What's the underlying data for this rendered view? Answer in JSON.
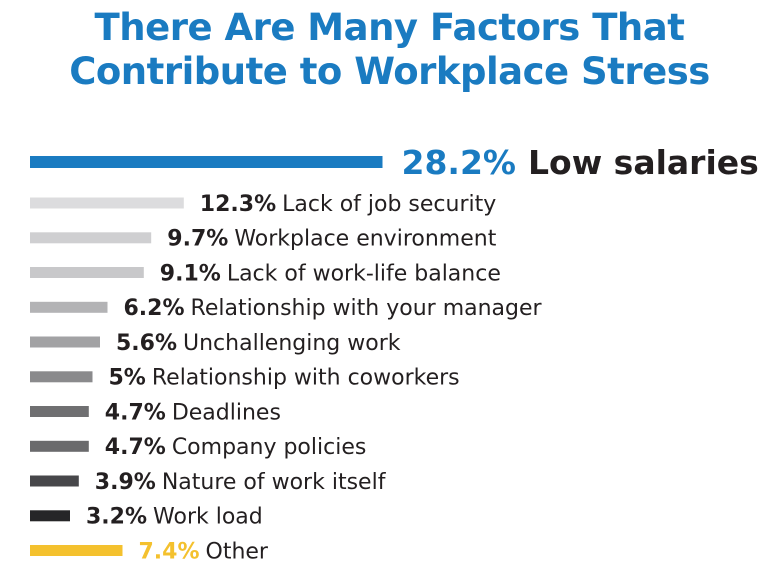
{
  "title_lines": [
    "There Are Many Factors That",
    "Contribute to Workplace Stress"
  ],
  "chart_data": {
    "type": "bar",
    "orientation": "horizontal",
    "title": "There Are Many Factors That Contribute to Workplace Stress",
    "categories": [
      "Low salaries",
      "Lack of job security",
      "Workplace environment",
      "Lack of work-life balance",
      "Relationship with your manager",
      "Unchallenging work",
      "Relationship with coworkers",
      "Deadlines",
      "Company policies",
      "Nature of work itself",
      "Work load",
      "Other"
    ],
    "values": [
      28.2,
      12.3,
      9.7,
      9.1,
      6.2,
      5.6,
      5,
      4.7,
      4.7,
      3.9,
      3.2,
      7.4
    ],
    "value_labels": [
      "28.2%",
      "12.3%",
      "9.7%",
      "9.1%",
      "6.2%",
      "5.6%",
      "5%",
      "4.7%",
      "4.7%",
      "3.9%",
      "3.2%",
      "7.4%"
    ],
    "bar_colors": [
      "#1a7bc1",
      "#dcdcde",
      "#cfcfd1",
      "#c8c8ca",
      "#b3b3b5",
      "#a2a2a4",
      "#8a8a8c",
      "#6f6f71",
      "#6a6a6c",
      "#47474a",
      "#262628",
      "#f4c12e"
    ],
    "value_colors": [
      "#1a7bc1",
      "#231f20",
      "#231f20",
      "#231f20",
      "#231f20",
      "#231f20",
      "#231f20",
      "#231f20",
      "#231f20",
      "#231f20",
      "#231f20",
      "#f4c12e"
    ],
    "label_colors": [
      "#231f20",
      "#231f20",
      "#231f20",
      "#231f20",
      "#231f20",
      "#231f20",
      "#231f20",
      "#231f20",
      "#231f20",
      "#231f20",
      "#231f20",
      "#231f20"
    ],
    "title_color": "#1a7bc1",
    "grid": false,
    "legend": "none"
  }
}
